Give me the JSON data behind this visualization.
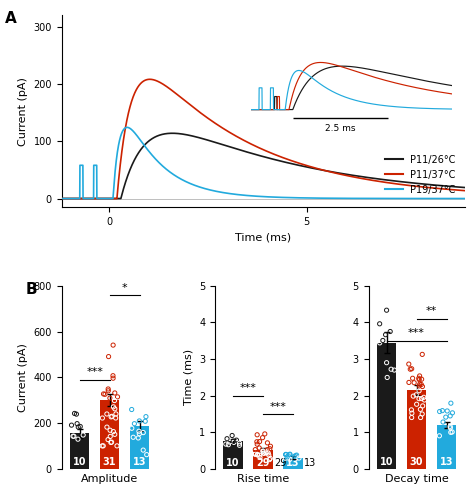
{
  "panel_A_label": "A",
  "panel_B_label": "B",
  "colors": {
    "black": "#1a1a1a",
    "red": "#CC2200",
    "blue": "#22AADD"
  },
  "legend_labels": [
    "P11/26°C",
    "P11/37°C",
    "P19/37°C"
  ],
  "amp_bars": [
    155,
    300,
    185
  ],
  "amp_errors": [
    20,
    25,
    22
  ],
  "amp_n": [
    "10",
    "31",
    "13"
  ],
  "amp_ylim": [
    0,
    800
  ],
  "amp_yticks": [
    0,
    200,
    400,
    600,
    800
  ],
  "amp_ylabel": "Current (pA)",
  "amp_xlabel": "Amplitude",
  "rise_bars": [
    0.75,
    0.52,
    0.3
  ],
  "rise_errors": [
    0.07,
    0.05,
    0.04
  ],
  "rise_n": [
    "10",
    "29",
    "13"
  ],
  "rise_ylim": [
    0,
    5
  ],
  "rise_yticks": [
    0,
    1,
    2,
    3,
    4,
    5
  ],
  "rise_ylabel": "Time (ms)",
  "rise_xlabel": "Rise time",
  "decay_bars": [
    3.45,
    2.15,
    1.2
  ],
  "decay_errors": [
    0.28,
    0.13,
    0.09
  ],
  "decay_n": [
    "10",
    "30",
    "13"
  ],
  "decay_ylim": [
    0,
    5
  ],
  "decay_yticks": [
    0,
    1,
    2,
    3,
    4,
    5
  ],
  "decay_xlabel": "Decay time"
}
